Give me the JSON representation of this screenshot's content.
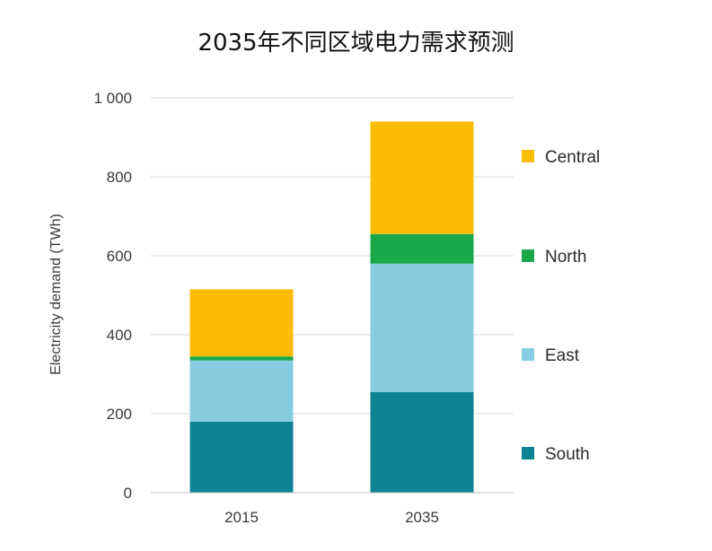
{
  "chart_data": {
    "type": "bar",
    "stacked": true,
    "title": "2035年不同区域电力需求预测",
    "ylabel": "Electricity demand (TWh)",
    "xlabel": "",
    "ylim": [
      0,
      1000
    ],
    "yticks": [
      0,
      200,
      400,
      600,
      800,
      1000
    ],
    "ytick_labels": [
      "0",
      "200",
      "400",
      "600",
      "800",
      "1 000"
    ],
    "categories": [
      "2015",
      "2035"
    ],
    "grid": true,
    "legend_position": "right",
    "series": [
      {
        "name": "South",
        "color": "#0E8394",
        "values": [
          180,
          255
        ]
      },
      {
        "name": "East",
        "color": "#86CDE1",
        "values": [
          155,
          325
        ]
      },
      {
        "name": "North",
        "color": "#1AA84B",
        "values": [
          10,
          75
        ]
      },
      {
        "name": "Central",
        "color": "#FBBC04",
        "values": [
          170,
          285
        ]
      }
    ],
    "legend_order": [
      "Central",
      "North",
      "East",
      "South"
    ]
  }
}
